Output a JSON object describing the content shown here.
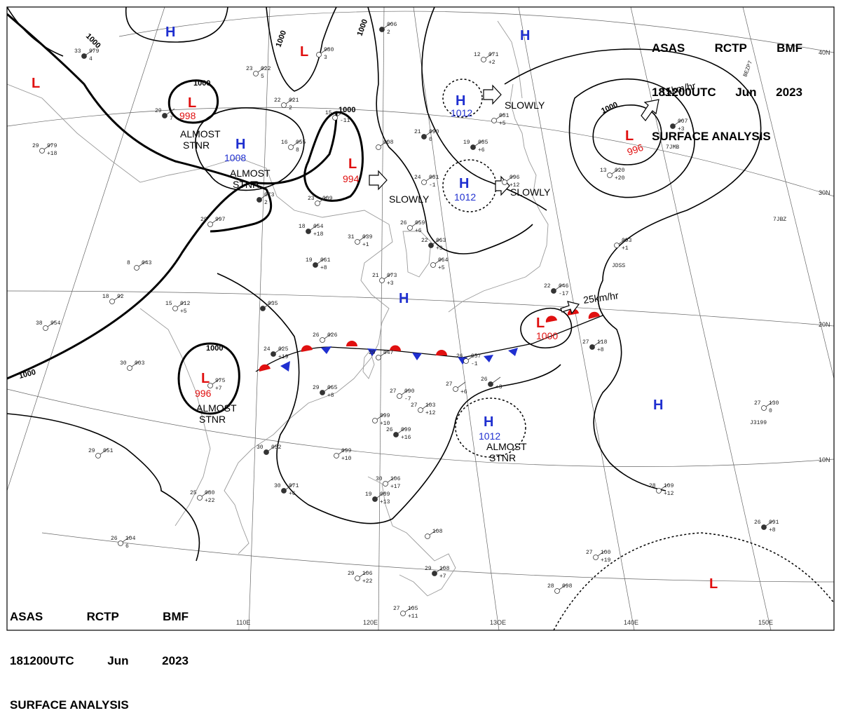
{
  "header": {
    "line1": [
      "ASAS",
      "RCTP",
      "BMF"
    ],
    "line2": [
      "181200UTC",
      "Jun",
      "2023"
    ],
    "line3": "SURFACE ANALYSIS"
  },
  "coords": {
    "lon": [
      "110E",
      "120E",
      "13OE",
      "140E",
      "150E"
    ],
    "lat": [
      "40N",
      "30N",
      "20N",
      "10N"
    ]
  },
  "colors": {
    "high": "#1f2fd0",
    "low": "#e01010",
    "line": "#000000",
    "coast": "#999999"
  },
  "isobar_labels": [
    "1000",
    "1000",
    "1000",
    "1000",
    "1000",
    "1000",
    "1000",
    "1000",
    "1000"
  ],
  "systems": [
    {
      "type": "H",
      "pressure": ""
    },
    {
      "type": "L",
      "pressure": ""
    },
    {
      "type": "L",
      "pressure": "998"
    },
    {
      "type": "H",
      "pressure": "1008"
    },
    {
      "type": "L",
      "pressure": ""
    },
    {
      "type": "L",
      "pressure": "994"
    },
    {
      "type": "H",
      "pressure": "1012"
    },
    {
      "type": "H",
      "pressure": "1012"
    },
    {
      "type": "H",
      "pressure": ""
    },
    {
      "type": "L",
      "pressure": "996"
    },
    {
      "type": "H",
      "pressure": ""
    },
    {
      "type": "L",
      "pressure": "1000"
    },
    {
      "type": "L",
      "pressure": "996"
    },
    {
      "type": "H",
      "pressure": "1012"
    },
    {
      "type": "H",
      "pressure": ""
    },
    {
      "type": "L",
      "pressure": ""
    }
  ],
  "motion": [
    "ALMOST\nSTNR",
    "ALMOST\nSTNR",
    "SLOWLY",
    "SLOWLY",
    "SLOWLY",
    "15km/hr",
    "25km/hr",
    "ALMOST\nSTNR",
    "ALMOST\nSTNR"
  ],
  "stations": [
    {
      "t": "33",
      "p": "979",
      "l": "4"
    },
    {
      "t": "23",
      "p": "022",
      "l": "5"
    },
    {
      "t": "",
      "p": "980",
      "l": "3"
    },
    {
      "t": "",
      "p": "006",
      "l": "2"
    },
    {
      "t": "22",
      "p": "021",
      "l": "2"
    },
    {
      "t": "15",
      "p": "",
      "l": "-11"
    },
    {
      "t": "29",
      "p": "",
      "l": "7"
    },
    {
      "t": "29",
      "p": "979",
      "l": "+18"
    },
    {
      "t": "16",
      "p": "055",
      "l": "8"
    },
    {
      "t": "",
      "p": "073",
      "l": "2"
    },
    {
      "t": "23",
      "p": "009",
      "l": ""
    },
    {
      "t": "",
      "p": "008",
      "l": ""
    },
    {
      "t": "21",
      "p": "090",
      "l": "0"
    },
    {
      "t": "12",
      "p": "071",
      "l": "+2"
    },
    {
      "t": "",
      "p": "081",
      "l": "+5"
    },
    {
      "t": "19",
      "p": "085",
      "l": "+6"
    },
    {
      "t": "24",
      "p": "081",
      "l": "-1"
    },
    {
      "t": "",
      "p": "096",
      "l": "+12"
    },
    {
      "t": "",
      "p": "007",
      "l": "+3"
    },
    {
      "t": "13",
      "p": "020",
      "l": "+20"
    },
    {
      "t": "29",
      "p": "997",
      "l": ""
    },
    {
      "t": "18",
      "p": "054",
      "l": "+18"
    },
    {
      "t": "31",
      "p": "039",
      "l": "+1"
    },
    {
      "t": "26",
      "p": "059",
      "l": "+6"
    },
    {
      "t": "22",
      "p": "063",
      "l": "+3"
    },
    {
      "t": "",
      "p": "064",
      "l": "+5"
    },
    {
      "t": "8",
      "p": "043",
      "l": ""
    },
    {
      "t": "19",
      "p": "061",
      "l": "+8"
    },
    {
      "t": "21",
      "p": "073",
      "l": "+3"
    },
    {
      "t": "",
      "p": "093",
      "l": "+1"
    },
    {
      "t": "22",
      "p": "046",
      "l": "-17"
    },
    {
      "t": "18",
      "p": "92",
      "l": ""
    },
    {
      "t": "15",
      "p": "012",
      "l": "+5"
    },
    {
      "t": "",
      "p": "035",
      "l": ""
    },
    {
      "t": "38",
      "p": "954",
      "l": ""
    },
    {
      "t": "26",
      "p": "026",
      "l": ""
    },
    {
      "t": "24",
      "p": "025",
      "l": "+19"
    },
    {
      "t": "29",
      "p": "047",
      "l": ""
    },
    {
      "t": "26",
      "p": "057",
      "l": "-1"
    },
    {
      "t": "27",
      "p": "118",
      "l": "+8"
    },
    {
      "t": "30",
      "p": "003",
      "l": ""
    },
    {
      "t": "",
      "p": "975",
      "l": "+7"
    },
    {
      "t": "29",
      "p": "065",
      "l": "+8"
    },
    {
      "t": "27",
      "p": "090",
      "l": "-7"
    },
    {
      "t": "27",
      "p": "",
      "l": "+6"
    },
    {
      "t": "26",
      "p": "",
      "l": "+3"
    },
    {
      "t": "27",
      "p": "103",
      "l": "+12"
    },
    {
      "t": "",
      "p": "099",
      "l": "+10"
    },
    {
      "t": "26",
      "p": "099",
      "l": "+16"
    },
    {
      "t": "27",
      "p": "130",
      "l": "0"
    },
    {
      "t": "29",
      "p": "051",
      "l": ""
    },
    {
      "t": "30",
      "p": "052",
      "l": ""
    },
    {
      "t": "",
      "p": "099",
      "l": "+10"
    },
    {
      "t": "30",
      "p": "106",
      "l": "+17"
    },
    {
      "t": "19",
      "p": "089",
      "l": "+13"
    },
    {
      "t": "28",
      "p": "109",
      "l": "+12"
    },
    {
      "t": "25",
      "p": "080",
      "l": "+22"
    },
    {
      "t": "30",
      "p": "071",
      "l": "+6"
    },
    {
      "t": "26",
      "p": "104",
      "l": "6"
    },
    {
      "t": "",
      "p": "108",
      "l": ""
    },
    {
      "t": "26",
      "p": "091",
      "l": "+8"
    },
    {
      "t": "27",
      "p": "100",
      "l": "+19"
    },
    {
      "t": "29",
      "p": "106",
      "l": "+22"
    },
    {
      "t": "29",
      "p": "108",
      "l": "+7"
    },
    {
      "t": "28",
      "p": "098",
      "l": ""
    },
    {
      "t": "27",
      "p": "105",
      "l": "+11"
    }
  ],
  "station_ids": [
    "7JBZ",
    "JDSS",
    "J3199",
    "BEZP7",
    "7JMB"
  ]
}
